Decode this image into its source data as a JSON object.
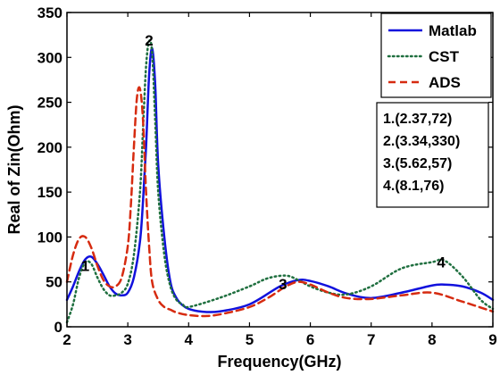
{
  "chart_data": {
    "type": "line",
    "xlabel": "Frequency(GHz)",
    "ylabel": "Real of Zin(Ohm)",
    "xlim": [
      2,
      9
    ],
    "ylim": [
      0,
      350
    ],
    "xticks": [
      "2",
      "3",
      "4",
      "5",
      "6",
      "7",
      "8",
      "9"
    ],
    "yticks": [
      "0",
      "50",
      "100",
      "150",
      "200",
      "250",
      "300",
      "350"
    ],
    "grid": false,
    "legend_position": "top-right",
    "series": [
      {
        "name": "Matlab",
        "color": "#1111dd",
        "style": "solid",
        "x": [
          2.0,
          2.1,
          2.2,
          2.3,
          2.4,
          2.5,
          2.6,
          2.7,
          2.8,
          2.9,
          3.0,
          3.1,
          3.2,
          3.25,
          3.3,
          3.35,
          3.4,
          3.45,
          3.5,
          3.6,
          3.7,
          3.8,
          3.9,
          4.0,
          4.2,
          4.5,
          5.0,
          5.5,
          5.8,
          6.0,
          6.3,
          6.6,
          7.0,
          7.5,
          8.0,
          8.2,
          8.5,
          8.8,
          9.0
        ],
        "y": [
          30,
          45,
          62,
          75,
          78,
          70,
          58,
          45,
          37,
          35,
          38,
          55,
          95,
          140,
          200,
          280,
          310,
          270,
          180,
          100,
          50,
          32,
          24,
          20,
          17,
          17,
          25,
          45,
          52,
          51,
          45,
          37,
          32,
          38,
          46,
          47,
          45,
          38,
          30
        ]
      },
      {
        "name": "CST",
        "color": "#1f6f3f",
        "style": "dotted",
        "x": [
          2.0,
          2.1,
          2.2,
          2.3,
          2.4,
          2.5,
          2.6,
          2.7,
          2.8,
          2.9,
          3.0,
          3.1,
          3.2,
          3.25,
          3.3,
          3.35,
          3.4,
          3.45,
          3.5,
          3.6,
          3.7,
          3.8,
          3.9,
          4.0,
          4.5,
          5.0,
          5.3,
          5.6,
          5.8,
          6.0,
          6.3,
          6.6,
          7.0,
          7.5,
          8.0,
          8.2,
          8.5,
          8.8,
          9.0
        ],
        "y": [
          5,
          25,
          55,
          72,
          70,
          55,
          42,
          35,
          35,
          38,
          48,
          80,
          150,
          220,
          290,
          318,
          305,
          230,
          150,
          80,
          45,
          30,
          25,
          22,
          32,
          45,
          54,
          57,
          52,
          45,
          38,
          36,
          45,
          65,
          72,
          74,
          56,
          30,
          20
        ]
      },
      {
        "name": "ADS",
        "color": "#d62b10",
        "style": "dashed",
        "x": [
          2.0,
          2.1,
          2.2,
          2.3,
          2.4,
          2.5,
          2.6,
          2.7,
          2.8,
          2.9,
          3.0,
          3.05,
          3.1,
          3.15,
          3.2,
          3.25,
          3.3,
          3.35,
          3.4,
          3.5,
          3.6,
          3.7,
          3.8,
          4.0,
          4.3,
          4.6,
          5.0,
          5.3,
          5.6,
          5.8,
          6.0,
          6.3,
          6.6,
          7.0,
          7.5,
          8.0,
          8.5,
          9.0
        ],
        "y": [
          50,
          80,
          98,
          100,
          88,
          68,
          52,
          45,
          45,
          55,
          90,
          135,
          200,
          255,
          265,
          230,
          150,
          90,
          50,
          30,
          22,
          19,
          16,
          13,
          12,
          15,
          22,
          32,
          45,
          50,
          47,
          38,
          32,
          31,
          35,
          38,
          28,
          17
        ]
      }
    ],
    "point_labels": [
      {
        "text": "1",
        "x": 2.3,
        "y": 62
      },
      {
        "text": "2",
        "x": 3.35,
        "y": 313
      },
      {
        "text": "3",
        "x": 5.55,
        "y": 42
      },
      {
        "text": "4",
        "x": 8.15,
        "y": 66
      }
    ],
    "annotation_box": [
      "1.(2.37,72)",
      "2.(3.34,330)",
      "3.(5.62,57)",
      "4.(8.1,76)"
    ]
  }
}
